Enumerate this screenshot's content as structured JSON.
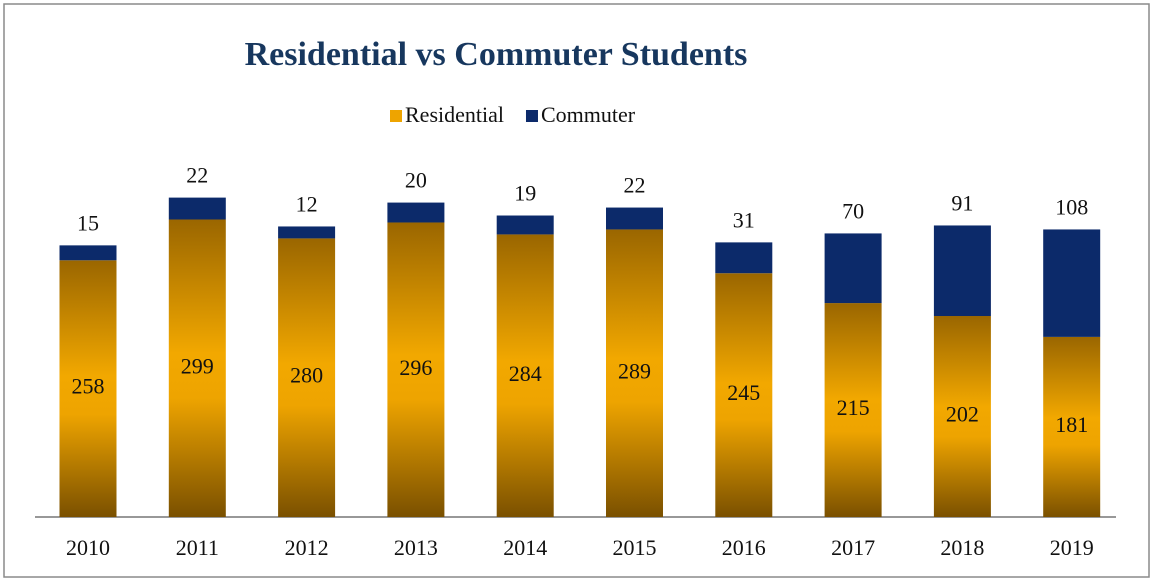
{
  "chart_data": {
    "type": "stacked_bar",
    "title": "Residential vs Commuter Students",
    "categories": [
      "2010",
      "2011",
      "2012",
      "2013",
      "2014",
      "2015",
      "2016",
      "2017",
      "2018",
      "2019"
    ],
    "series": [
      {
        "name": "Residential",
        "color": "#eea400",
        "values": [
          258,
          299,
          280,
          296,
          284,
          289,
          245,
          215,
          202,
          181
        ]
      },
      {
        "name": "Commuter",
        "color": "#0c2a6a",
        "values": [
          15,
          22,
          12,
          20,
          19,
          22,
          31,
          70,
          91,
          108
        ]
      }
    ],
    "legend": "top"
  }
}
